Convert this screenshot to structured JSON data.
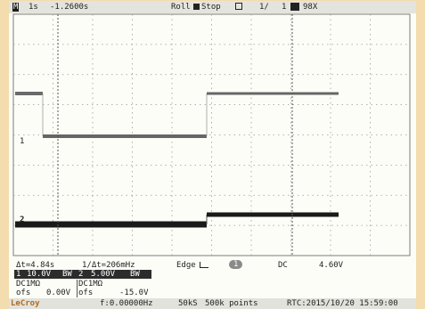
{
  "top_bar": {
    "mode_label": "M",
    "timebase": "1s",
    "trigger_delay": "-1.2600s",
    "roll_label": "Roll",
    "stop_label": "Stop",
    "page_label": "1/",
    "page_total": "1",
    "battery_label": "98X"
  },
  "markers": {
    "ch1": "1",
    "ch2": "2"
  },
  "measurements": {
    "delta_t": "Δt=4.84s",
    "inv_delta_t": "1/Δt=206mHz",
    "trigger_edge_label": "Edge",
    "trigger_source": "1",
    "coupling": "DC",
    "trigger_level": "4.60V"
  },
  "channels": [
    {
      "label": "1",
      "scale": "10.0V",
      "bw": "BW",
      "coupling": "DC1MΩ",
      "offset_label": "ofs",
      "offset": "0.00V"
    },
    {
      "label": "2",
      "scale": "5.00V",
      "bw": "BW",
      "coupling": "DC1MΩ",
      "offset_label": "ofs",
      "offset": "-15.0V"
    }
  ],
  "bottom_bar": {
    "brand": "LeCroy",
    "frequency": "f:0.00000Hz",
    "sample_rate": "50kS",
    "record_length": "500k points",
    "rtc": "RTC:2015/10/20 15:59:00"
  },
  "colors": {
    "bezel": "#f3dcae",
    "screen": "#fdfdf8",
    "grid": "#9a9a9a",
    "trace": "#1a1a1a",
    "accent": "#d4a24c"
  }
}
